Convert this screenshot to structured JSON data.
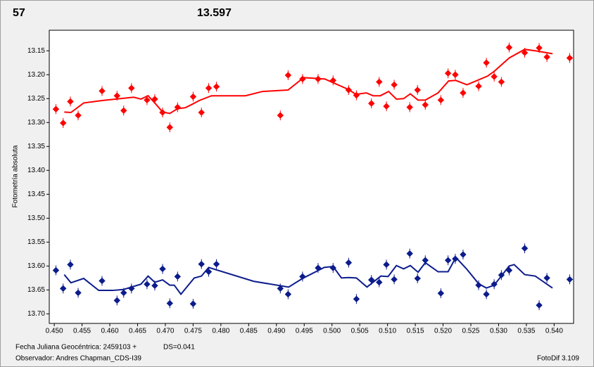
{
  "chart_data": {
    "type": "scatter",
    "annotations": {
      "left_value": "57",
      "left_color": "#ff0000",
      "right_value": "13.597",
      "right_color": "#0c1c8c"
    },
    "ylabel": "Fotometría absoluta",
    "footer": {
      "date": "Fecha Juliana Geocéntrica: 2459103 +",
      "ds": "DS=0.041",
      "observer": "Observador: Andres Chapman_CDS-I39",
      "software": "FotoDif 3.109"
    },
    "xlim": [
      0.4491,
      0.5435
    ],
    "ylim": [
      13.72,
      13.107
    ],
    "inverted_y": true,
    "grid": false,
    "xticks": [
      {
        "value": 0.45,
        "label": "0.450"
      },
      {
        "value": 0.455,
        "label": "0.455"
      },
      {
        "value": 0.46,
        "label": "0.460"
      },
      {
        "value": 0.465,
        "label": "0.465"
      },
      {
        "value": 0.47,
        "label": "0.470"
      },
      {
        "value": 0.475,
        "label": "0.475"
      },
      {
        "value": 0.48,
        "label": "0.480"
      },
      {
        "value": 0.485,
        "label": "0.485"
      },
      {
        "value": 0.49,
        "label": "0.490"
      },
      {
        "value": 0.495,
        "label": "0.495"
      },
      {
        "value": 0.5,
        "label": "0.500"
      },
      {
        "value": 0.505,
        "label": "0.505"
      },
      {
        "value": 0.51,
        "label": "0.510"
      },
      {
        "value": 0.515,
        "label": "0.515"
      },
      {
        "value": 0.52,
        "label": "0.520"
      },
      {
        "value": 0.525,
        "label": "0.525"
      },
      {
        "value": 0.53,
        "label": "0.530"
      },
      {
        "value": 0.535,
        "label": "0.535"
      },
      {
        "value": 0.54,
        "label": "0.540"
      }
    ],
    "yticks": [
      13.15,
      {
        "value": 13.2,
        "label": "13.20"
      },
      13.25,
      {
        "value": 13.3,
        "label": "13.30"
      },
      13.35,
      {
        "value": 13.4,
        "label": "13.40"
      },
      13.45,
      {
        "value": 13.5,
        "label": "13.50"
      },
      13.55,
      {
        "value": 13.6,
        "label": "13.60"
      },
      13.65,
      {
        "value": 13.7,
        "label": "13.70"
      }
    ],
    "series": [
      {
        "color": "#ff0000",
        "mode": "markers",
        "x": [
          0.4503,
          0.4516,
          0.4529,
          0.4543,
          0.4586,
          0.4613,
          0.4625,
          0.4639,
          0.4667,
          0.4681,
          0.4695,
          0.4708,
          0.4722,
          0.475,
          0.4765,
          0.4778,
          0.4792,
          0.4907,
          0.4921,
          0.4947,
          0.4975,
          0.5002,
          0.503,
          0.5044,
          0.5071,
          0.5085,
          0.5098,
          0.5112,
          0.514,
          0.5154,
          0.5168,
          0.5196,
          0.5209,
          0.5222,
          0.5236,
          0.5264,
          0.5278,
          0.5292,
          0.5305,
          0.5319,
          0.5347,
          0.5373,
          0.5387,
          0.5428
        ],
        "values": [
          13.272,
          13.301,
          13.256,
          13.285,
          13.234,
          13.244,
          13.275,
          13.228,
          13.253,
          13.251,
          13.279,
          13.31,
          13.268,
          13.246,
          13.279,
          13.228,
          13.225,
          13.285,
          13.201,
          13.209,
          13.209,
          13.212,
          13.232,
          13.243,
          13.26,
          13.215,
          13.266,
          13.221,
          13.268,
          13.232,
          13.263,
          13.253,
          13.197,
          13.2,
          13.238,
          13.224,
          13.175,
          13.204,
          13.215,
          13.143,
          13.154,
          13.144,
          13.163,
          13.165
        ]
      },
      {
        "color": "#ff0000",
        "mode": "line",
        "x": [
          0.4518,
          0.453,
          0.4553,
          0.4586,
          0.4643,
          0.4656,
          0.4669,
          0.4681,
          0.4695,
          0.4708,
          0.4722,
          0.4736,
          0.4748,
          0.4761,
          0.4783,
          0.4844,
          0.4875,
          0.4921,
          0.4949,
          0.4987,
          0.503,
          0.5043,
          0.5062,
          0.5074,
          0.5087,
          0.5102,
          0.5116,
          0.5129,
          0.5141,
          0.5155,
          0.5168,
          0.5191,
          0.521,
          0.5223,
          0.5243,
          0.528,
          0.5292,
          0.5319,
          0.5347,
          0.5366,
          0.5397
        ],
        "values": [
          13.278,
          13.279,
          13.259,
          13.254,
          13.247,
          13.251,
          13.244,
          13.259,
          13.278,
          13.281,
          13.271,
          13.269,
          13.262,
          13.254,
          13.244,
          13.244,
          13.235,
          13.232,
          13.206,
          13.209,
          13.231,
          13.241,
          13.238,
          13.244,
          13.244,
          13.235,
          13.251,
          13.25,
          13.24,
          13.253,
          13.253,
          13.238,
          13.213,
          13.212,
          13.221,
          13.203,
          13.193,
          13.165,
          13.147,
          13.15,
          13.156
        ]
      },
      {
        "color": "#0c1c8c",
        "mode": "markers",
        "x": [
          0.4503,
          0.4516,
          0.4529,
          0.4543,
          0.4586,
          0.4613,
          0.4625,
          0.4639,
          0.4667,
          0.4681,
          0.4695,
          0.4708,
          0.4722,
          0.475,
          0.4765,
          0.4778,
          0.4792,
          0.4907,
          0.4921,
          0.4947,
          0.4975,
          0.5002,
          0.503,
          0.5044,
          0.5071,
          0.5085,
          0.5098,
          0.5112,
          0.514,
          0.5154,
          0.5168,
          0.5196,
          0.5209,
          0.5222,
          0.5236,
          0.5264,
          0.5278,
          0.5292,
          0.5305,
          0.5319,
          0.5347,
          0.5373,
          0.5387,
          0.5428
        ],
        "values": [
          13.609,
          13.647,
          13.597,
          13.656,
          13.631,
          13.672,
          13.656,
          13.647,
          13.638,
          13.641,
          13.606,
          13.678,
          13.622,
          13.679,
          13.596,
          13.612,
          13.596,
          13.647,
          13.659,
          13.622,
          13.604,
          13.604,
          13.593,
          13.669,
          13.629,
          13.634,
          13.597,
          13.628,
          13.574,
          13.626,
          13.588,
          13.657,
          13.588,
          13.585,
          13.576,
          13.64,
          13.659,
          13.638,
          13.619,
          13.609,
          13.563,
          13.682,
          13.625,
          13.628
        ]
      },
      {
        "color": "#0c1c8c",
        "mode": "line",
        "x": [
          0.4518,
          0.453,
          0.4553,
          0.458,
          0.4605,
          0.4625,
          0.4639,
          0.4656,
          0.4669,
          0.4681,
          0.4695,
          0.4708,
          0.4716,
          0.4728,
          0.4752,
          0.4765,
          0.4778,
          0.4859,
          0.4922,
          0.4947,
          0.4986,
          0.5002,
          0.5017,
          0.503,
          0.5044,
          0.5063,
          0.5088,
          0.5101,
          0.5116,
          0.5129,
          0.5141,
          0.5155,
          0.5168,
          0.5191,
          0.5209,
          0.5223,
          0.5243,
          0.5264,
          0.5278,
          0.5292,
          0.5319,
          0.5328,
          0.5347,
          0.5366,
          0.5397
        ],
        "values": [
          13.618,
          13.635,
          13.626,
          13.651,
          13.651,
          13.649,
          13.644,
          13.638,
          13.621,
          13.634,
          13.629,
          13.64,
          13.64,
          13.659,
          13.625,
          13.621,
          13.603,
          13.632,
          13.644,
          13.626,
          13.603,
          13.601,
          13.625,
          13.624,
          13.625,
          13.644,
          13.621,
          13.622,
          13.599,
          13.606,
          13.599,
          13.613,
          13.593,
          13.612,
          13.612,
          13.582,
          13.607,
          13.637,
          13.646,
          13.64,
          13.6,
          13.597,
          13.618,
          13.621,
          13.646
        ]
      }
    ]
  }
}
